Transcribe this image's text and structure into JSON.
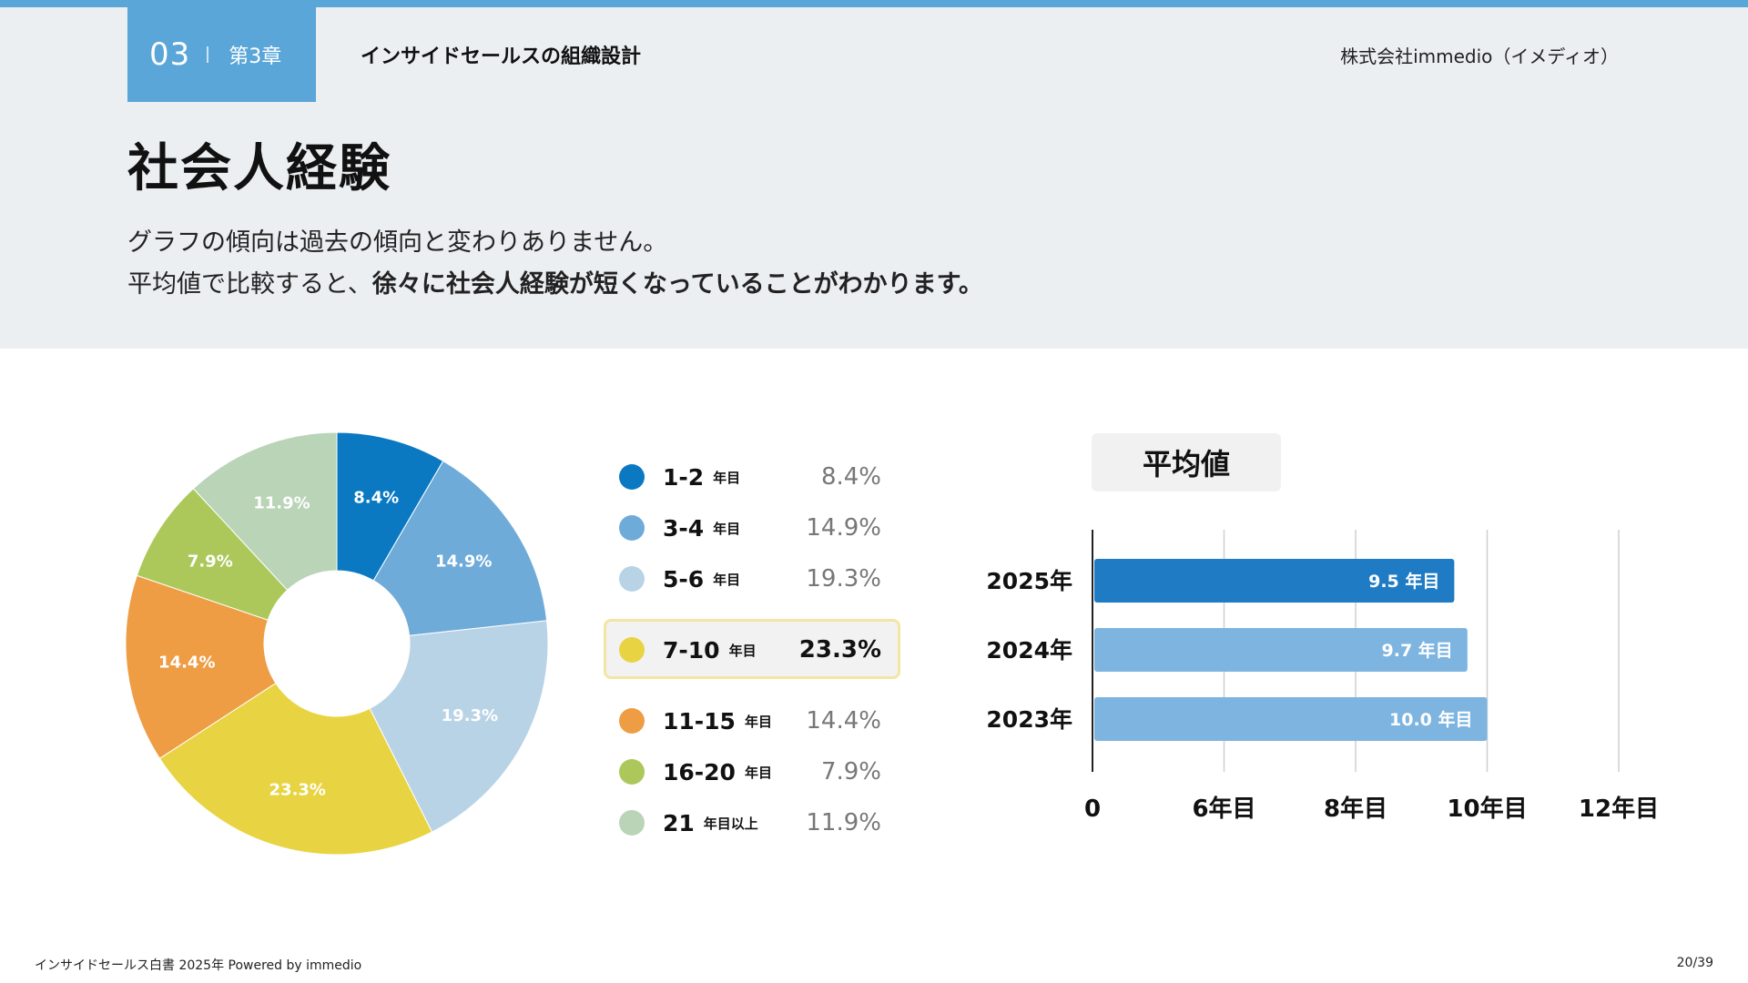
{
  "header": {
    "chapter_number": "03",
    "chapter_label": "第3章",
    "section_title": "インサイドセールスの組織設計",
    "company": "株式会社immedio（イメディオ）"
  },
  "page_title": "社会人経験",
  "description": {
    "line1": "グラフの傾向は過去の傾向と変わりありません。",
    "line2_prefix": "平均値で比較すると、",
    "line2_bold": "徐々に社会人経験が短くなっていることがわかります。"
  },
  "legend": [
    {
      "label": "1-2",
      "unit": "年目",
      "pct": "8.4%",
      "color": "#0a79c2"
    },
    {
      "label": "3-4",
      "unit": "年目",
      "pct": "14.9%",
      "color": "#6fabd9"
    },
    {
      "label": "5-6",
      "unit": "年目",
      "pct": "19.3%",
      "color": "#b9d3e6"
    },
    {
      "label": "7-10",
      "unit": "年目",
      "pct": "23.3%",
      "color": "#e8d442",
      "highlight": true
    },
    {
      "label": "11-15",
      "unit": "年目",
      "pct": "14.4%",
      "color": "#ee9d45"
    },
    {
      "label": "16-20",
      "unit": "年目",
      "pct": "7.9%",
      "color": "#acc85a"
    },
    {
      "label": "21",
      "unit": "年目以上",
      "pct": "11.9%",
      "color": "#b9d4b7"
    }
  ],
  "average": {
    "title": "平均値"
  },
  "chart_data": [
    {
      "type": "pie",
      "donut": true,
      "categories": [
        "1-2 年目",
        "3-4 年目",
        "5-6 年目",
        "7-10 年目",
        "11-15 年目",
        "16-20 年目",
        "21 年目以上"
      ],
      "values": [
        8.4,
        14.9,
        19.3,
        23.3,
        14.4,
        7.9,
        11.9
      ],
      "data_labels": [
        "8.4%",
        "14.9%",
        "19.3%",
        "23.3%",
        "14.4%",
        "7.9%",
        "11.9%"
      ],
      "colors": [
        "#0a79c2",
        "#6fabd9",
        "#b9d3e6",
        "#e8d442",
        "#ee9d45",
        "#acc85a",
        "#b9d4b7"
      ]
    },
    {
      "type": "bar",
      "orientation": "horizontal",
      "title": "平均値",
      "categories": [
        "2025年",
        "2024年",
        "2023年"
      ],
      "values": [
        9.5,
        9.7,
        10.0
      ],
      "data_labels": [
        "9.5 年目",
        "9.7 年目",
        "10.0 年目"
      ],
      "x_ticks": [
        "0",
        "6年目",
        "8年目",
        "10年目",
        "12年目"
      ],
      "x_tick_values": [
        4,
        6,
        8,
        10,
        12
      ],
      "xlim": [
        4,
        12
      ],
      "colors": [
        "#1f7bc4",
        "#7db4e0",
        "#7db4e0"
      ],
      "grid": true
    }
  ],
  "footer": {
    "left": "インサイドセールス白書 2025年 Powered by immedio",
    "right": "20/39"
  }
}
